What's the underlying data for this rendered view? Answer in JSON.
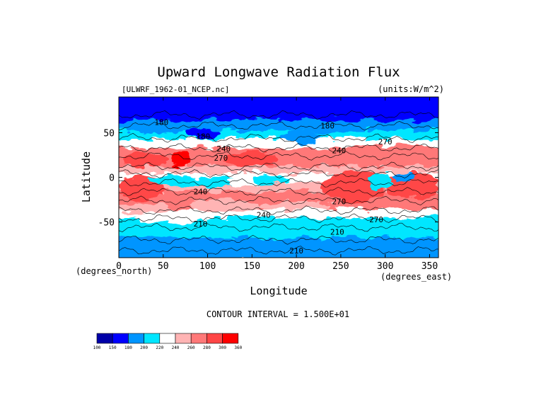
{
  "chart_data": {
    "type": "heatmap",
    "title": "Upward Longwave Radiation Flux",
    "subtitle_left": "[ULWRF_1962-01_NCEP.nc]",
    "subtitle_right": "(units:W/m^2)",
    "xlabel": "Longitude",
    "ylabel": "Latitude",
    "x_unit_note": "(degrees_east)",
    "y_unit_note": "(degrees_north)",
    "xlim": [
      0,
      360
    ],
    "ylim": [
      -90,
      90
    ],
    "x_ticks": [
      0,
      50,
      100,
      150,
      200,
      250,
      300,
      350
    ],
    "y_ticks": [
      -50,
      0,
      50
    ],
    "contour_interval_text": "CONTOUR INTERVAL = 1.500E+01",
    "contour_labels": [
      {
        "value": "180",
        "lon": 48,
        "lat": 62
      },
      {
        "value": "180",
        "lon": 95,
        "lat": 46
      },
      {
        "value": "180",
        "lon": 235,
        "lat": 58
      },
      {
        "value": "240",
        "lon": 118,
        "lat": 32
      },
      {
        "value": "270",
        "lon": 115,
        "lat": 22
      },
      {
        "value": "240",
        "lon": 248,
        "lat": 30
      },
      {
        "value": "270",
        "lon": 300,
        "lat": 40
      },
      {
        "value": "240",
        "lon": 92,
        "lat": -16
      },
      {
        "value": "270",
        "lon": 248,
        "lat": -27
      },
      {
        "value": "240",
        "lon": 163,
        "lat": -42
      },
      {
        "value": "270",
        "lon": 290,
        "lat": -47
      },
      {
        "value": "210",
        "lon": 92,
        "lat": -52
      },
      {
        "value": "210",
        "lon": 246,
        "lat": -61
      },
      {
        "value": "210",
        "lon": 200,
        "lat": -82
      }
    ],
    "colorbar": {
      "levels": [
        "100",
        "150",
        "180",
        "200",
        "220",
        "240",
        "260",
        "280",
        "300",
        "360"
      ],
      "colors": [
        "#0000a8",
        "#0000ff",
        "#0095ff",
        "#00e6ff",
        "#ffffff",
        "#ffb4b4",
        "#ff7878",
        "#ff4646",
        "#ff0000"
      ]
    },
    "band_profile": [
      {
        "lat": 90,
        "value": 160
      },
      {
        "lat": 75,
        "value": 170
      },
      {
        "lat": 60,
        "value": 195
      },
      {
        "lat": 48,
        "value": 212
      },
      {
        "lat": 38,
        "value": 238
      },
      {
        "lat": 28,
        "value": 262
      },
      {
        "lat": 18,
        "value": 274
      },
      {
        "lat": 8,
        "value": 252
      },
      {
        "lat": 0,
        "value": 235
      },
      {
        "lat": -10,
        "value": 248
      },
      {
        "lat": -20,
        "value": 272
      },
      {
        "lat": -30,
        "value": 262
      },
      {
        "lat": -40,
        "value": 236
      },
      {
        "lat": -50,
        "value": 214
      },
      {
        "lat": -60,
        "value": 204
      },
      {
        "lat": -72,
        "value": 198
      },
      {
        "lat": -90,
        "value": 190
      }
    ]
  }
}
